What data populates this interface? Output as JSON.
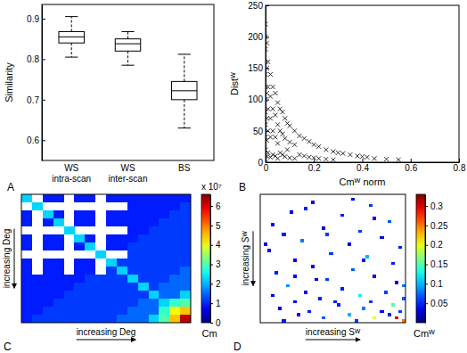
{
  "chart_data": [
    {
      "type": "box",
      "panel_label": "A",
      "y_label": "Similarity",
      "color": "#000000",
      "categories": [
        "WS intra-scan",
        "WS inter-scan",
        "BS"
      ],
      "min": [
        0.805,
        0.785,
        0.63
      ],
      "q1": [
        0.84,
        0.82,
        0.7
      ],
      "median": [
        0.855,
        0.838,
        0.722
      ],
      "q3": [
        0.868,
        0.85,
        0.745
      ],
      "max": [
        0.905,
        0.868,
        0.812
      ],
      "ylim": [
        0.55,
        0.935
      ],
      "yticks": [
        0.6,
        0.7,
        0.8,
        0.9
      ]
    },
    {
      "type": "scatter",
      "panel_label": "B",
      "x_label": "Cmᵂ norm",
      "y_label": "Distᵂ",
      "marker": "x",
      "color": "#000000",
      "x": [
        0,
        0,
        0,
        0,
        0,
        0,
        0,
        0,
        0,
        0,
        0,
        0,
        0.005,
        0.005,
        0.005,
        0.005,
        0.005,
        0.005,
        0.01,
        0.01,
        0.01,
        0.01,
        0.01,
        0.02,
        0.02,
        0.02,
        0.02,
        0.02,
        0.03,
        0.03,
        0.03,
        0.03,
        0.04,
        0.04,
        0.04,
        0.04,
        0.05,
        0.05,
        0.05,
        0.05,
        0.06,
        0.06,
        0.06,
        0.07,
        0.07,
        0.07,
        0.08,
        0.08,
        0.08,
        0.09,
        0.09,
        0.1,
        0.1,
        0.1,
        0.12,
        0.12,
        0.12,
        0.14,
        0.14,
        0.16,
        0.16,
        0.18,
        0.18,
        0.2,
        0.2,
        0.22,
        0.22,
        0.25,
        0.25,
        0.28,
        0.28,
        0.3,
        0.32,
        0.35,
        0.38,
        0.4,
        0.42,
        0.45,
        0.5,
        0.55
      ],
      "values": [
        220,
        200,
        180,
        160,
        140,
        120,
        100,
        80,
        60,
        40,
        20,
        5,
        190,
        150,
        110,
        70,
        35,
        10,
        160,
        120,
        85,
        50,
        15,
        140,
        105,
        70,
        40,
        8,
        120,
        85,
        50,
        12,
        110,
        75,
        40,
        10,
        95,
        60,
        30,
        6,
        85,
        50,
        15,
        80,
        45,
        12,
        70,
        38,
        9,
        62,
        20,
        58,
        32,
        7,
        50,
        28,
        6,
        42,
        12,
        38,
        10,
        33,
        8,
        28,
        7,
        25,
        6,
        20,
        5,
        17,
        4,
        15,
        14,
        12,
        10,
        9,
        8,
        6,
        5,
        4
      ],
      "xlim": [
        0,
        0.8
      ],
      "xticks": [
        0,
        0.2,
        0.4,
        0.6,
        0.8
      ],
      "ylim": [
        0,
        250
      ],
      "yticks": [
        0,
        50,
        100,
        150,
        200,
        250
      ]
    },
    {
      "type": "heatmap",
      "panel_label": "C",
      "x_label": "increasing Deg",
      "y_label": "increasing Deg",
      "tick_labels": false,
      "cells": [
        [
          22000000,
          null,
          10000000,
          10000000,
          null,
          10000000,
          10000000,
          null,
          10000000,
          10000000,
          10000000,
          10000000,
          10000000,
          10000000,
          10000000,
          10000000
        ],
        [
          null,
          22000000,
          null,
          null,
          null,
          null,
          null,
          null,
          null,
          null,
          10000000,
          10000000,
          10000000,
          10000000,
          10000000,
          12000000
        ],
        [
          10000000,
          null,
          22000000,
          10000000,
          null,
          10000000,
          10000000,
          null,
          10000000,
          10000000,
          10000000,
          10000000,
          10000000,
          10000000,
          12000000,
          12000000
        ],
        [
          10000000,
          null,
          10000000,
          22000000,
          null,
          10000000,
          10000000,
          null,
          10000000,
          10000000,
          10000000,
          10000000,
          10000000,
          12000000,
          12000000,
          12000000
        ],
        [
          null,
          null,
          null,
          null,
          22000000,
          null,
          null,
          null,
          null,
          null,
          10000000,
          10000000,
          12000000,
          12000000,
          12000000,
          12000000
        ],
        [
          10000000,
          null,
          10000000,
          10000000,
          null,
          22000000,
          10000000,
          null,
          10000000,
          10000000,
          10000000,
          12000000,
          12000000,
          12000000,
          12000000,
          12000000
        ],
        [
          10000000,
          null,
          10000000,
          10000000,
          null,
          10000000,
          22000000,
          null,
          10000000,
          10000000,
          12000000,
          12000000,
          12000000,
          12000000,
          12000000,
          12000000
        ],
        [
          null,
          null,
          null,
          null,
          null,
          null,
          null,
          22000000,
          null,
          null,
          12000000,
          12000000,
          12000000,
          12000000,
          12000000,
          12000000
        ],
        [
          10000000,
          null,
          10000000,
          10000000,
          null,
          10000000,
          10000000,
          null,
          22000000,
          12000000,
          12000000,
          12000000,
          12000000,
          12000000,
          12000000,
          12000000
        ],
        [
          10000000,
          null,
          10000000,
          10000000,
          null,
          10000000,
          10000000,
          null,
          12000000,
          22000000,
          12000000,
          12000000,
          12000000,
          12000000,
          12000000,
          15000000
        ],
        [
          10000000,
          10000000,
          10000000,
          10000000,
          10000000,
          10000000,
          12000000,
          12000000,
          12000000,
          12000000,
          22000000,
          12000000,
          12000000,
          12000000,
          15000000,
          15000000
        ],
        [
          10000000,
          10000000,
          10000000,
          10000000,
          10000000,
          12000000,
          12000000,
          12000000,
          12000000,
          12000000,
          12000000,
          22000000,
          12000000,
          15000000,
          15000000,
          15000000
        ],
        [
          10000000,
          10000000,
          10000000,
          10000000,
          12000000,
          12000000,
          12000000,
          12000000,
          12000000,
          12000000,
          12000000,
          12000000,
          22000000,
          15000000,
          15000000,
          22000000
        ],
        [
          10000000,
          10000000,
          10000000,
          12000000,
          12000000,
          12000000,
          12000000,
          12000000,
          12000000,
          12000000,
          12000000,
          15000000,
          15000000,
          22000000,
          28000000,
          30000000
        ],
        [
          10000000,
          10000000,
          12000000,
          12000000,
          12000000,
          12000000,
          12000000,
          12000000,
          12000000,
          12000000,
          15000000,
          15000000,
          15000000,
          28000000,
          40000000,
          45000000
        ],
        [
          10000000,
          12000000,
          12000000,
          12000000,
          12000000,
          12000000,
          12000000,
          12000000,
          12000000,
          15000000,
          15000000,
          15000000,
          22000000,
          30000000,
          45000000,
          62000000
        ]
      ],
      "colorbar": {
        "title": "x 10⁷",
        "label": "Cm",
        "range": [
          0,
          66000000
        ],
        "ticks": [
          0,
          {
            "value": 10000000,
            "label": "1"
          },
          {
            "value": 20000000,
            "label": "2"
          },
          {
            "value": 30000000,
            "label": "3"
          },
          {
            "value": 40000000,
            "label": "4"
          },
          {
            "value": 50000000,
            "label": "5"
          },
          {
            "value": 60000000,
            "label": "6"
          }
        ]
      }
    },
    {
      "type": "heatmap",
      "panel_label": "D",
      "x_label": "increasing Sᵂ",
      "y_label": "increasing Sᵂ",
      "tick_labels": false,
      "xlim": [
        0,
        40
      ],
      "ylim": [
        0,
        40
      ],
      "rows": [
        2,
        3,
        5,
        6,
        8,
        9,
        10,
        11,
        12,
        13,
        14,
        15,
        16,
        17,
        18,
        19,
        20,
        21,
        22,
        23,
        24,
        25,
        26,
        27,
        28,
        29,
        30,
        30,
        31,
        31,
        32,
        32,
        33,
        33,
        34,
        34,
        35,
        35,
        36,
        36,
        36,
        37,
        37,
        37,
        38,
        38,
        38,
        39,
        39,
        39,
        1,
        4,
        7,
        12,
        15,
        20,
        25,
        28,
        33,
        26
      ],
      "cols": [
        14,
        30,
        8,
        22,
        35,
        3,
        17,
        27,
        6,
        33,
        11,
        24,
        38,
        2,
        19,
        29,
        9,
        36,
        14,
        25,
        4,
        31,
        18,
        37,
        7,
        22,
        12,
        34,
        27,
        3,
        16,
        39,
        9,
        30,
        21,
        36,
        5,
        28,
        13,
        33,
        38,
        24,
        35,
        10,
        17,
        31,
        37,
        6,
        26,
        39,
        25,
        12,
        31,
        18,
        1,
        28,
        9,
        39,
        20,
        15
      ],
      "values": [
        0.04,
        0.06,
        0.03,
        0.05,
        0.07,
        0.04,
        0.03,
        0.06,
        0.05,
        0.04,
        0.08,
        0.03,
        0.05,
        0.04,
        0.06,
        0.1,
        0.03,
        0.05,
        0.04,
        0.07,
        0.05,
        0.04,
        0.06,
        0.03,
        0.09,
        0.05,
        0.04,
        0.06,
        0.12,
        0.03,
        0.05,
        0.07,
        0.04,
        0.06,
        0.05,
        0.15,
        0.03,
        0.08,
        0.05,
        0.04,
        0.06,
        0.1,
        0.05,
        0.04,
        0.07,
        0.2,
        0.3,
        0.05,
        0.06,
        0.25,
        0.03,
        0.05,
        0.04,
        0.06,
        0.03,
        0.05,
        0.04,
        0.08,
        0.05,
        0.03
      ],
      "colorbar": {
        "label": "Cmᵂ",
        "range": [
          0,
          0.33
        ],
        "ticks": [
          0.05,
          0.1,
          0.15,
          0.2,
          0.25,
          0.3
        ]
      }
    }
  ]
}
